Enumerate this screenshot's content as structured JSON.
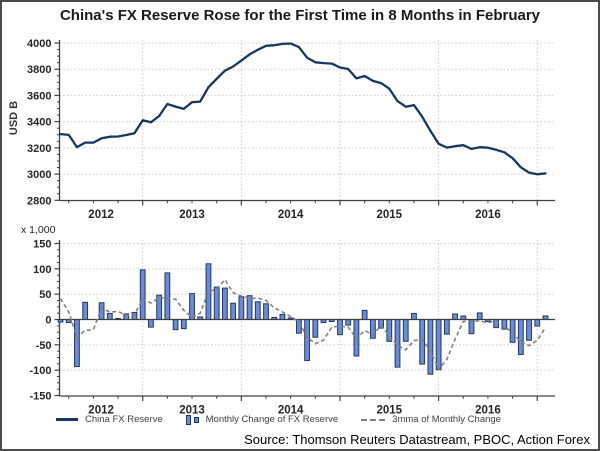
{
  "title": "China's FX Reserve Rose for the First Time in 8 Months in February",
  "source": "Source: Thomson Reuters Datastream, PBOC, Action Forex",
  "legend": [
    {
      "label": "China FX Reserve",
      "swatch": "navy-line"
    },
    {
      "label": "Monthly Change of FX Reserve",
      "swatch": "blue-bars"
    },
    {
      "label": "3mma of Monthly Change",
      "swatch": "gray-dashed"
    }
  ],
  "colors": {
    "line": "#17375E",
    "bar_fill": "#6C8BD4",
    "bar_stroke": "#1F3864",
    "dashed": "#7F7F7F",
    "grid": "#C9C9C9",
    "axis": "#404040",
    "tick_text": "#262626"
  },
  "chart_data": [
    {
      "type": "line",
      "panel": "top",
      "ylabel": "USD B",
      "ylim": [
        2800,
        4000
      ],
      "yticks": [
        4000,
        3800,
        3600,
        3400,
        3200,
        3000,
        2800
      ],
      "x_year_labels": [
        "2012",
        "2013",
        "2014",
        "2015",
        "2016"
      ],
      "x_monthly_start": "2012-03",
      "x_monthly_end": "2017-02",
      "grid": true,
      "legend_position": "bottom",
      "series": [
        {
          "name": "China FX Reserve",
          "values": [
            3305,
            3299,
            3206,
            3240,
            3240,
            3273,
            3285,
            3287,
            3298,
            3312,
            3410,
            3395,
            3443,
            3535,
            3515,
            3497,
            3548,
            3553,
            3663,
            3727,
            3789,
            3821,
            3866,
            3913,
            3948,
            3979,
            3983,
            3993,
            3996,
            3969,
            3888,
            3853,
            3847,
            3843,
            3813,
            3802,
            3730,
            3748,
            3711,
            3694,
            3651,
            3557,
            3514,
            3526,
            3438,
            3330,
            3231,
            3202,
            3213,
            3220,
            3192,
            3205,
            3201,
            3185,
            3166,
            3121,
            3052,
            3011,
            2998,
            3005
          ]
        }
      ]
    },
    {
      "type": "bar",
      "panel": "bottom",
      "scale_label": "x 1,000",
      "ylim": [
        -150,
        150
      ],
      "yticks": [
        150,
        100,
        50,
        0,
        -50,
        -100,
        -150
      ],
      "x_year_labels": [
        "2012",
        "2013",
        "2014",
        "2015",
        "2016"
      ],
      "x_monthly_start": "2012-03",
      "x_monthly_end": "2017-02",
      "grid": true,
      "series": [
        {
          "name": "Monthly Change of FX Reserve",
          "type": "bar",
          "values": [
            -5,
            -6,
            -93,
            34,
            0,
            33,
            12,
            2,
            11,
            14,
            98,
            -15,
            48,
            92,
            -20,
            -18,
            51,
            5,
            110,
            64,
            62,
            32,
            45,
            47,
            35,
            31,
            4,
            10,
            3,
            -27,
            -81,
            -35,
            -6,
            -4,
            -30,
            -11,
            -72,
            18,
            -37,
            -17,
            -43,
            -94,
            -43,
            12,
            -88,
            -108,
            -99,
            -29,
            11,
            7,
            -28,
            13,
            -4,
            -16,
            -19,
            -45,
            -69,
            -41,
            -13,
            7
          ]
        },
        {
          "name": "3mma of Monthly Change",
          "type": "dashed-line",
          "values": [
            41.3,
            15.0,
            -34.7,
            -21.7,
            -19.7,
            22.3,
            15.0,
            15.7,
            8.3,
            9.0,
            41.0,
            32.3,
            43.7,
            41.7,
            40.0,
            18.0,
            4.3,
            12.7,
            55.3,
            59.7,
            78.7,
            52.7,
            46.3,
            41.3,
            42.3,
            37.7,
            23.3,
            15.0,
            5.7,
            -4.7,
            -35.0,
            -47.7,
            -40.7,
            -15.0,
            -13.3,
            -15.0,
            -37.7,
            -21.7,
            -30.3,
            -12.0,
            -32.3,
            -51.3,
            -60.0,
            -41.7,
            -39.7,
            -61.3,
            -98.3,
            -78.7,
            -39.0,
            -3.7,
            -3.3,
            -2.7,
            -6.3,
            -2.3,
            -13.0,
            -26.7,
            -44.3,
            -51.7,
            -41.0,
            -15.7
          ]
        }
      ]
    }
  ]
}
